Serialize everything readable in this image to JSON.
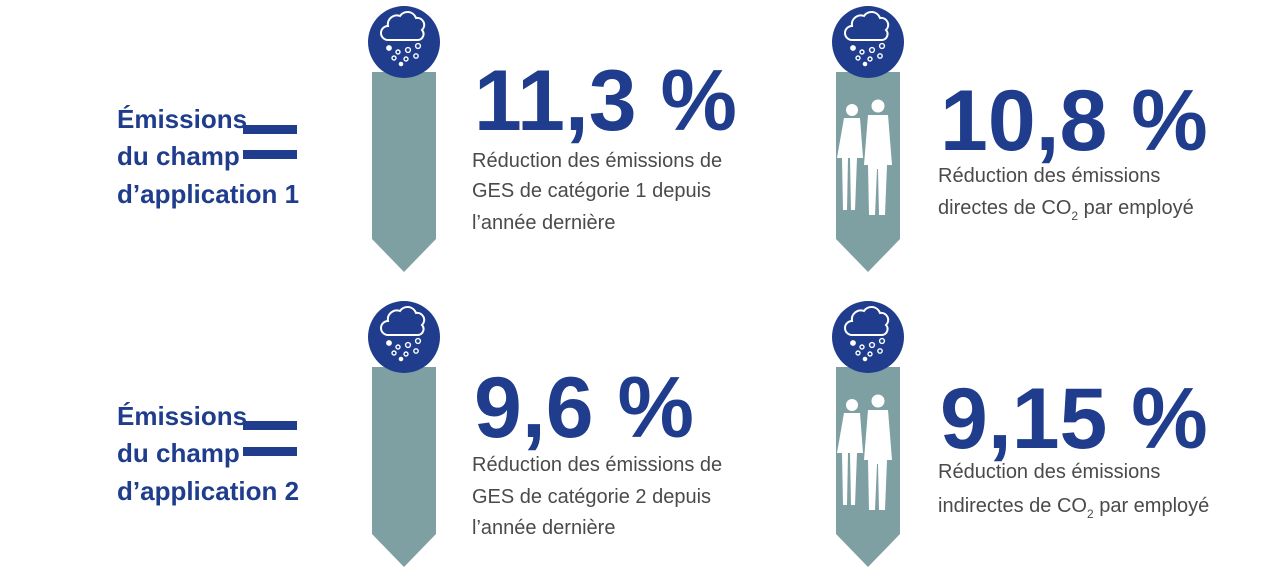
{
  "rows": [
    {
      "label": [
        "Émissions",
        "du champ",
        "d’application 1"
      ],
      "stats": [
        {
          "value": "11,3 %",
          "description": [
            {
              "text": "Réduction des émissions de"
            },
            {
              "text": "GES de catégorie 1 depuis"
            },
            {
              "text": "l’année dernière"
            }
          ]
        },
        {
          "value": "10,8 %",
          "description": [
            {
              "text": "Réduction des émissions"
            },
            {
              "text": "directes de CO",
              "sub": "2",
              "after": " par employé"
            }
          ]
        }
      ]
    },
    {
      "label": [
        "Émissions",
        "du champ",
        "d’application 2"
      ],
      "stats": [
        {
          "value": "9,6 %",
          "description": [
            {
              "text": "Réduction des émissions de"
            },
            {
              "text": "GES de catégorie 2 depuis"
            },
            {
              "text": "l’année dernière"
            }
          ]
        },
        {
          "value": "9,15 %",
          "description": [
            {
              "text": "Réduction des émissions"
            },
            {
              "text": "indirectes de CO",
              "sub": "2",
              "after": " par employé"
            }
          ]
        }
      ]
    }
  ]
}
